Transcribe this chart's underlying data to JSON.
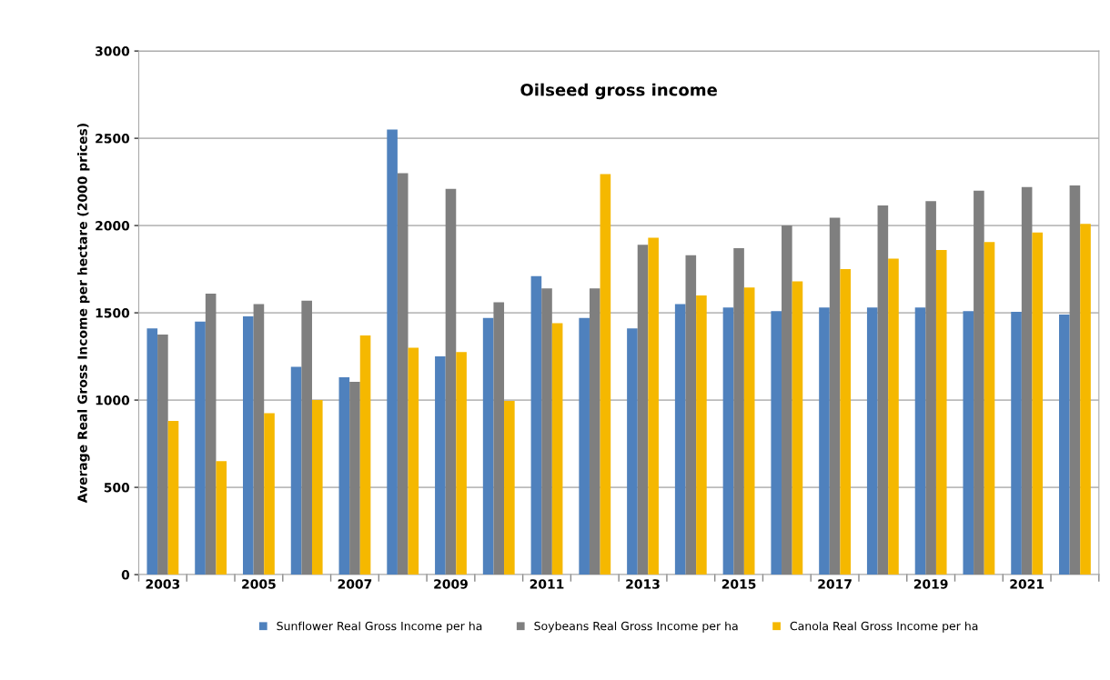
{
  "chart_data": {
    "type": "bar",
    "title": "Oilseed gross income",
    "ylabel": "Average Real Gross Income per hectare (2000 prices)",
    "categories": [
      "2003",
      null,
      "2005",
      null,
      "2007",
      null,
      "2009",
      null,
      "2011",
      null,
      "2013",
      null,
      "2015",
      null,
      "2017",
      null,
      "2019",
      null,
      "2021",
      null
    ],
    "series": [
      {
        "name": "Sunflower Real Gross Income per ha",
        "color": "#4f81bd",
        "values": [
          1410,
          1450,
          1480,
          1190,
          1130,
          2550,
          1250,
          1470,
          1710,
          1470,
          1410,
          1550,
          1530,
          1510,
          1530,
          1530,
          1530,
          1510,
          1505,
          1490
        ]
      },
      {
        "name": "Soybeans Real Gross Income per ha",
        "color": "#7f7f7f",
        "values": [
          1375,
          1610,
          1550,
          1570,
          1105,
          2300,
          2210,
          1560,
          1640,
          1640,
          1890,
          1830,
          1870,
          2000,
          2045,
          2115,
          2140,
          2200,
          2220,
          2230
        ]
      },
      {
        "name": "Canola Real Gross Income per ha",
        "color": "#f5b800",
        "values": [
          880,
          650,
          925,
          1000,
          1370,
          1300,
          1275,
          995,
          1440,
          2295,
          1930,
          1600,
          1645,
          1680,
          1750,
          1810,
          1860,
          1905,
          1960,
          2010
        ]
      }
    ],
    "ylim": [
      0,
      3000
    ],
    "yticks": [
      0,
      500,
      1000,
      1500,
      2000,
      2500,
      3000
    ],
    "grid": "y",
    "legend": "bottom"
  }
}
